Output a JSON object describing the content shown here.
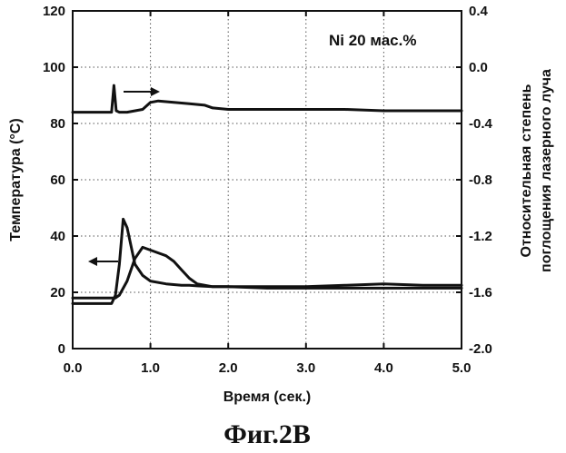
{
  "chart_data": {
    "type": "line",
    "caption": "Фиг.2B",
    "annotation": "Ni 20 мас.%",
    "xlabel": "Время (сек.)",
    "ylabel_left": "Температура (°C)",
    "ylabel_right_line1": "Относительная степень",
    "ylabel_right_line2": "поглощения лазерного луча",
    "xlim": [
      0.0,
      5.0
    ],
    "ylim_left": [
      0,
      120
    ],
    "ylim_right": [
      -2.0,
      0.4
    ],
    "x_ticks": [
      "0.0",
      "1.0",
      "2.0",
      "3.0",
      "4.0",
      "5.0"
    ],
    "y_left_ticks": [
      "0",
      "20",
      "40",
      "60",
      "80",
      "100",
      "120"
    ],
    "y_right_ticks": [
      "-2.0",
      "-1.6",
      "-1.2",
      "-0.8",
      "-0.4",
      "0.0",
      "0.4"
    ],
    "grid": "dotted",
    "arrow_upper_direction": "right",
    "arrow_lower_direction": "left",
    "series": [
      {
        "axis": "right",
        "x": [
          0.0,
          0.5,
          0.53,
          0.56,
          0.6,
          0.7,
          0.9,
          1.0,
          1.1,
          1.3,
          1.5,
          1.7,
          1.8,
          2.0,
          2.5,
          3.0,
          3.5,
          4.0,
          4.5,
          5.0
        ],
        "y": [
          -0.32,
          -0.32,
          -0.13,
          -0.31,
          -0.32,
          -0.32,
          -0.3,
          -0.25,
          -0.24,
          -0.25,
          -0.26,
          -0.27,
          -0.29,
          -0.3,
          -0.3,
          -0.3,
          -0.3,
          -0.31,
          -0.31,
          -0.31
        ]
      },
      {
        "axis": "left",
        "x": [
          0.0,
          0.5,
          0.55,
          0.6,
          0.65,
          0.7,
          0.8,
          0.9,
          1.0,
          1.2,
          1.4,
          1.5,
          1.6,
          1.8,
          2.0,
          2.5,
          3.0,
          3.5,
          4.0,
          4.5,
          5.0
        ],
        "y": [
          16,
          16,
          19,
          30,
          46,
          43,
          30,
          26,
          24,
          23,
          22.5,
          22.5,
          22.3,
          22,
          22,
          21.5,
          21.5,
          21.5,
          21.5,
          21.5,
          21.5
        ]
      },
      {
        "axis": "left",
        "x": [
          0.0,
          0.55,
          0.6,
          0.7,
          0.8,
          0.9,
          1.0,
          1.1,
          1.2,
          1.3,
          1.4,
          1.5,
          1.6,
          1.8,
          2.0,
          2.5,
          3.0,
          3.5,
          4.0,
          4.5,
          5.0
        ],
        "y": [
          18,
          18,
          19,
          24,
          32,
          36,
          35,
          34,
          33,
          31,
          28,
          25,
          23,
          22,
          22,
          22,
          22,
          22.5,
          23,
          22.5,
          22.5
        ]
      }
    ]
  }
}
